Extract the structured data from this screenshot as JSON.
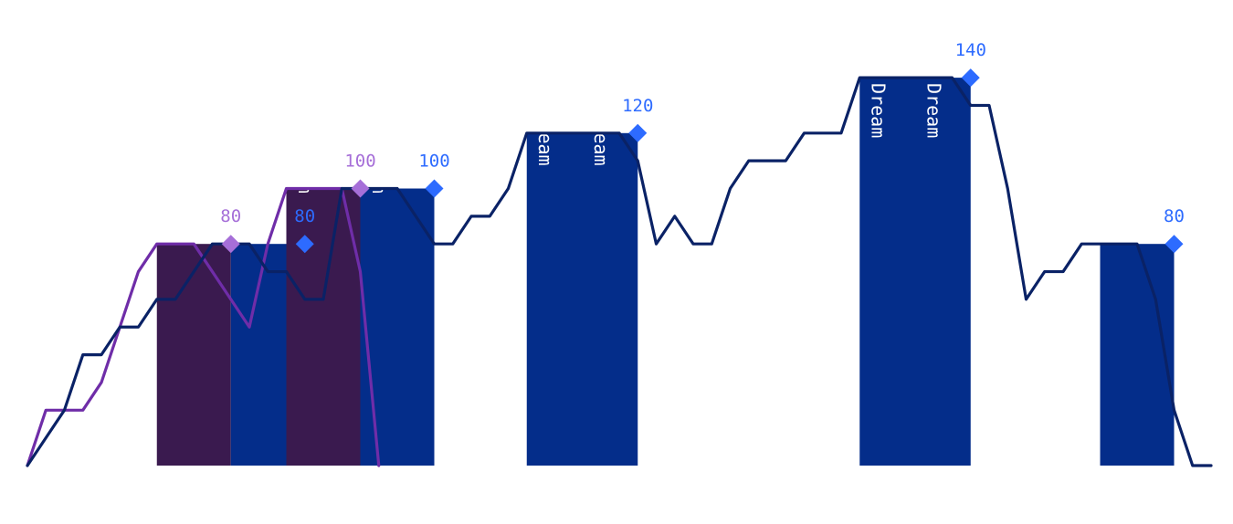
{
  "chart_data": {
    "type": "bar",
    "title": "",
    "xlabel": "",
    "ylabel": "",
    "ylim": [
      0,
      160
    ],
    "grid": false,
    "legend": "none",
    "bar_label_text": "Dream",
    "colors": {
      "series_a_bar": "#3a1a4f",
      "series_a_line": "#6f2da8",
      "series_a_marker": "#a66fd8",
      "series_b_bar": "#042d8a",
      "series_b_line": "#0a2266",
      "series_b_marker": "#2d6bff"
    },
    "bars": [
      {
        "series": "a",
        "x": 4.5,
        "width": 2,
        "value": 80,
        "label": "80"
      },
      {
        "series": "b",
        "x": 6.5,
        "width": 2,
        "value": 80,
        "label": "80"
      },
      {
        "series": "a",
        "x": 8,
        "width": 2,
        "value": 100,
        "label": "100"
      },
      {
        "series": "b",
        "x": 10,
        "width": 2,
        "value": 100,
        "label": "100"
      },
      {
        "series": "b",
        "x": 15,
        "width": 3,
        "value": 120,
        "label": "120"
      },
      {
        "series": "b",
        "x": 24,
        "width": 3,
        "value": 140,
        "label": "140"
      },
      {
        "series": "b",
        "x": 30,
        "width": 2,
        "value": 80,
        "label": "80"
      }
    ],
    "bar_text_rows": [
      {
        "x": 4.0,
        "value": 80
      },
      {
        "x": 5.5,
        "value": 80
      },
      {
        "x": 7.5,
        "value": 90
      },
      {
        "x": 9.5,
        "value": 90
      },
      {
        "x": 14.0,
        "value": 100
      },
      {
        "x": 15.5,
        "value": 100
      },
      {
        "x": 23.0,
        "value": 110
      },
      {
        "x": 24.5,
        "value": 110
      },
      {
        "x": 29.5,
        "value": 80
      }
    ],
    "series": [
      {
        "name": "",
        "key": "a",
        "x": [
          0,
          0.5,
          1,
          1.5,
          2,
          2.5,
          3,
          3.5,
          4,
          4.5,
          5,
          5.5,
          6,
          6.5,
          7,
          7.5,
          8,
          8.5,
          9,
          9.5
        ],
        "values": [
          0,
          20,
          20,
          20,
          30,
          50,
          70,
          80,
          80,
          80,
          70,
          60,
          50,
          80,
          100,
          100,
          100,
          100,
          70,
          0
        ]
      },
      {
        "name": "",
        "key": "b",
        "x": [
          0,
          0.5,
          1,
          1.5,
          2,
          2.5,
          3,
          3.5,
          4,
          4.5,
          5,
          5.5,
          6,
          6.5,
          7,
          7.5,
          8,
          8.5,
          9,
          9.5,
          10,
          10.5,
          11,
          11.5,
          12,
          12.5,
          13,
          13.5,
          14,
          14.5,
          15,
          15.5,
          16,
          16.5,
          17,
          17.5,
          18,
          18.5,
          19,
          19.5,
          20,
          20.5,
          21,
          21.5,
          22,
          22.5,
          23,
          23.5,
          24,
          24.5,
          25,
          25.5,
          26,
          26.5,
          27,
          27.5,
          28,
          28.5,
          29,
          29.5,
          30,
          30.5,
          31,
          31.5,
          32
        ],
        "values": [
          0,
          10,
          20,
          40,
          40,
          50,
          50,
          60,
          60,
          70,
          80,
          80,
          80,
          70,
          70,
          60,
          60,
          100,
          100,
          100,
          100,
          90,
          80,
          80,
          90,
          90,
          100,
          120,
          120,
          120,
          120,
          120,
          120,
          110,
          80,
          90,
          80,
          80,
          100,
          110,
          110,
          110,
          120,
          120,
          120,
          140,
          140,
          140,
          140,
          140,
          140,
          130,
          130,
          100,
          60,
          70,
          70,
          80,
          80,
          80,
          80,
          60,
          20,
          0,
          0
        ]
      }
    ]
  }
}
